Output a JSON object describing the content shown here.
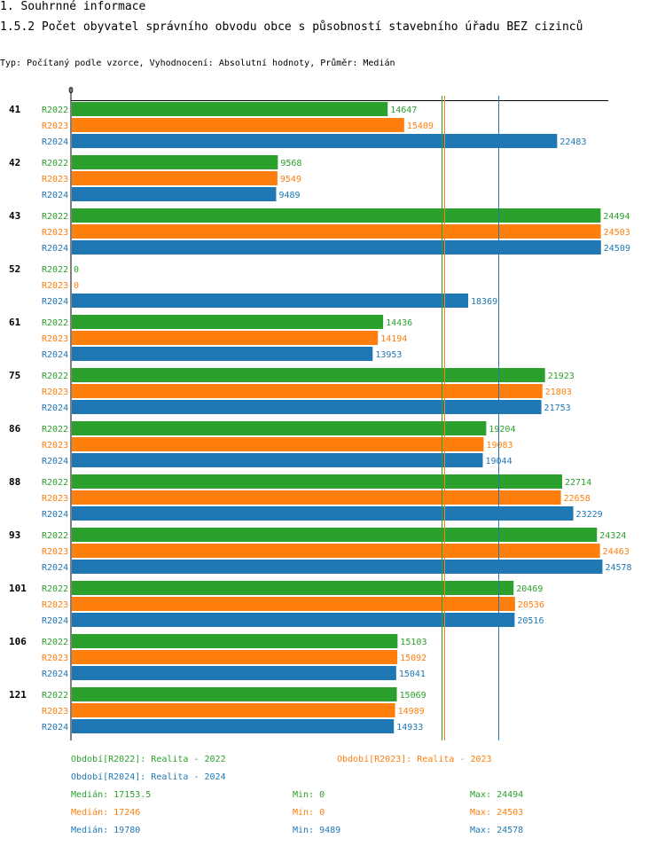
{
  "header": {
    "section": "1. Souhrnné informace",
    "title": "1.5.2 Počet obyvatel správního obvodu obce s působností stavebního úřadu BEZ cizinců",
    "subtitle": "Typ: Počítaný podle vzorce, Vyhodnocení: Absolutní hodnoty, Průměr: Medián"
  },
  "colors": {
    "R2022": "#2ca02c",
    "R2023": "#ff7f0e",
    "R2024": "#1f77b4"
  },
  "chart_data": {
    "type": "bar",
    "orientation": "horizontal",
    "axis_zero_label": "0",
    "xlim": [
      0,
      24600
    ],
    "categories": [
      "41",
      "42",
      "43",
      "52",
      "61",
      "75",
      "86",
      "88",
      "93",
      "101",
      "106",
      "121"
    ],
    "series": [
      {
        "key": "R2022",
        "name": "R2022",
        "values": [
          14647,
          9568,
          24494,
          0,
          14436,
          21923,
          19204,
          22714,
          24324,
          20469,
          15103,
          15069
        ]
      },
      {
        "key": "R2023",
        "name": "R2023",
        "values": [
          15409,
          9549,
          24503,
          0,
          14194,
          21803,
          19083,
          22658,
          24463,
          20536,
          15092,
          14989
        ]
      },
      {
        "key": "R2024",
        "name": "R2024",
        "values": [
          22483,
          9489,
          24509,
          18369,
          13953,
          21753,
          19044,
          23229,
          24578,
          20516,
          15041,
          14933
        ]
      }
    ],
    "median_lines": [
      {
        "key": "R2022",
        "value": 17153.5
      },
      {
        "key": "R2023",
        "value": 17246
      },
      {
        "key": "R2024",
        "value": 19780
      }
    ]
  },
  "legend": {
    "periods": [
      {
        "key": "R2022",
        "label": "Období[R2022]: Realita - 2022"
      },
      {
        "key": "R2023",
        "label": "Období[R2023]: Realita - 2023"
      },
      {
        "key": "R2024",
        "label": "Období[R2024]: Realita - 2024"
      }
    ],
    "stats": [
      {
        "key": "R2022",
        "median": "Medián: 17153.5",
        "min": "Min: 0",
        "max": "Max: 24494"
      },
      {
        "key": "R2023",
        "median": "Medián: 17246",
        "min": "Min: 0",
        "max": "Max: 24503"
      },
      {
        "key": "R2024",
        "median": "Medián: 19780",
        "min": "Min: 9489",
        "max": "Max: 24578"
      }
    ]
  }
}
